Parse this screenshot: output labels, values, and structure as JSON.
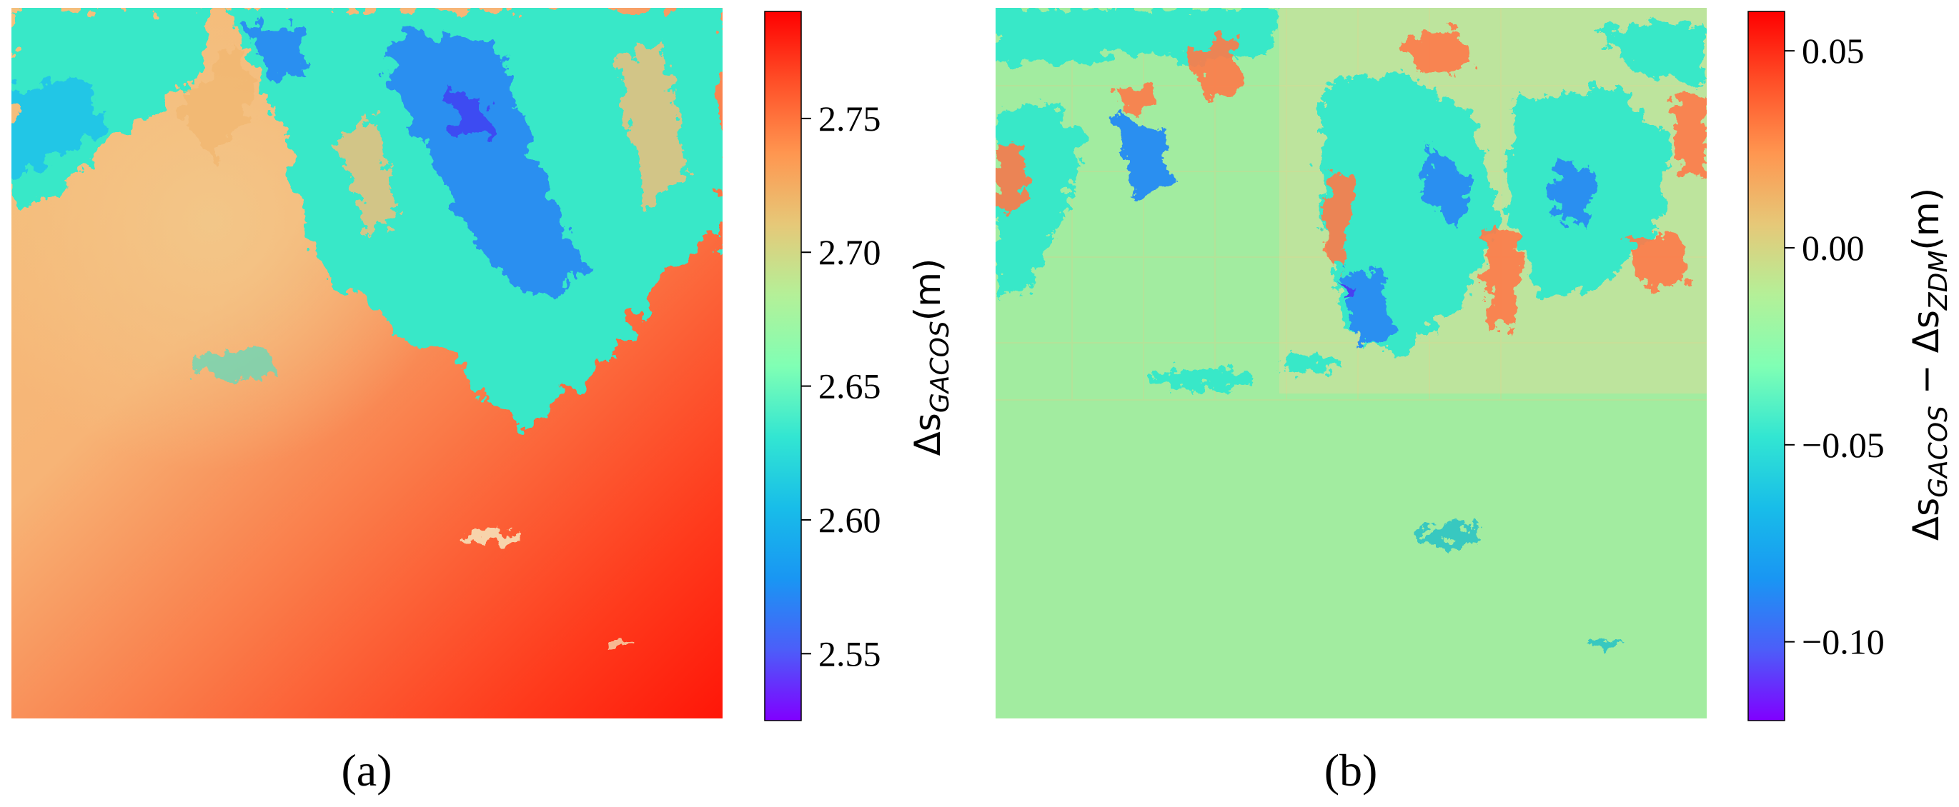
{
  "chart_data": [
    {
      "type": "heatmap",
      "panel_label": "(a)",
      "description_quantity": "GACOS slant delay",
      "colorbar": {
        "label_main": "Δs",
        "label_sub": "GACOS",
        "label_unit": "(m)",
        "range": [
          2.525,
          2.79
        ],
        "ticks": [
          2.55,
          2.6,
          2.65,
          2.7,
          2.75
        ],
        "tick_labels": [
          "2.55",
          "2.60",
          "2.65",
          "2.70",
          "2.75"
        ],
        "colormap": "rainbow"
      }
    },
    {
      "type": "heatmap",
      "panel_label": "(b)",
      "description_quantity": "difference GACOS minus ZDM",
      "colorbar": {
        "label_main_1": "Δs",
        "label_sub_1": "GACOS",
        "label_operator": " − Δs",
        "label_sub_2": "ZDM",
        "label_unit": "(m)",
        "range": [
          -0.12,
          0.06
        ],
        "ticks": [
          -0.1,
          -0.05,
          0.0,
          0.05
        ],
        "tick_labels": [
          "−0.10",
          "−0.05",
          "0.00",
          "0.05"
        ],
        "colormap": "rainbow"
      }
    }
  ],
  "colors": {
    "rainbow": [
      "#8000ff",
      "#4060f8",
      "#1996f3",
      "#00c8e6",
      "#32f0c8",
      "#80ffb4",
      "#b4f098",
      "#e6c878",
      "#ff9650",
      "#ff5028",
      "#ff0000"
    ]
  }
}
